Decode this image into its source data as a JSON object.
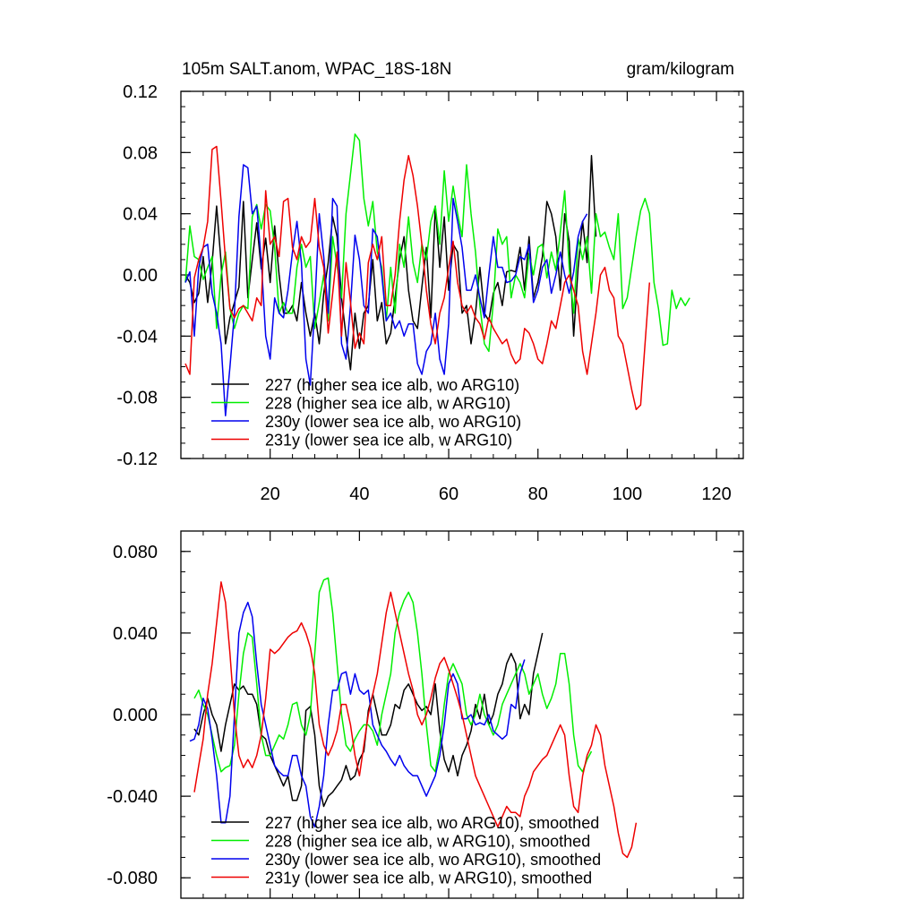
{
  "chart_data": [
    {
      "type": "line",
      "title": "105m SALT.anom, WPAC_18S-18N",
      "units": "gram/kilogram",
      "xlabel": "",
      "ylabel": "",
      "xlim": [
        0,
        126
      ],
      "ylim": [
        -0.12,
        0.12
      ],
      "x_ticks": [
        20,
        40,
        60,
        80,
        100,
        120
      ],
      "x_tick_labels": [
        "20",
        "40",
        "60",
        "80",
        "100",
        "120"
      ],
      "y_ticks": [
        -0.12,
        -0.08,
        -0.04,
        0.0,
        0.04,
        0.08,
        0.12
      ],
      "y_tick_labels": [
        "-0.12",
        "-0.08",
        "-0.04",
        "0.00",
        "0.04",
        "0.08",
        "0.12"
      ],
      "legend_position": "lower-left",
      "series": [
        {
          "name": "227 (higher sea ice alb, wo ARG10)",
          "color": "#000000",
          "x_start": 1,
          "values": [
            0.0,
            -0.005,
            -0.018,
            -0.012,
            0.012,
            -0.018,
            0.008,
            0.045,
            0.008,
            -0.045,
            -0.028,
            -0.018,
            -0.008,
            0.048,
            -0.015,
            0.01,
            0.034,
            0.004,
            0.024,
            -0.005,
            0.032,
            0.0,
            -0.025,
            -0.025,
            -0.02,
            -0.03,
            -0.005,
            -0.025,
            -0.04,
            -0.025,
            -0.045,
            -0.012,
            0.008,
            0.038,
            0.025,
            -0.015,
            -0.04,
            -0.062,
            -0.025,
            -0.048,
            -0.025,
            -0.02,
            0.01,
            -0.03,
            -0.018,
            -0.045,
            -0.038,
            -0.015,
            0.01,
            0.025,
            -0.01,
            -0.03,
            -0.035,
            -0.008,
            0.018,
            -0.028,
            0.045,
            0.005,
            0.038,
            -0.01,
            0.02,
            0.015,
            -0.025,
            -0.02,
            -0.045,
            -0.025,
            0.005,
            -0.025,
            -0.03,
            -0.012,
            -0.005,
            -0.02,
            0.002,
            0.003,
            0.002,
            0.018,
            -0.01,
            0.025,
            -0.015,
            -0.005,
            0.012,
            0.048,
            0.04,
            0.025,
            -0.01,
            0.04,
            0.022,
            -0.04,
            0.005,
            0.035,
            0.008,
            0.078,
            0.025
          ]
        },
        {
          "name": "228 (higher sea ice alb, w ARG10)",
          "color": "#00ee00",
          "x_start": 1,
          "values": [
            -0.005,
            0.032,
            0.012,
            0.01,
            -0.003,
            0.005,
            0.012,
            -0.035,
            0.0,
            0.015,
            -0.022,
            -0.035,
            -0.025,
            -0.02,
            -0.022,
            0.038,
            0.046,
            0.03,
            0.046,
            0.042,
            0.018,
            -0.025,
            -0.018,
            -0.025,
            -0.025,
            0.005,
            0.02,
            0.005,
            0.012,
            -0.035,
            -0.018,
            0.0,
            -0.03,
            0.025,
            0.006,
            -0.015,
            0.04,
            0.066,
            0.092,
            0.088,
            0.05,
            0.032,
            0.048,
            0.015,
            0.005,
            -0.03,
            0.005,
            -0.025,
            0.02,
            0.005,
            0.038,
            0.008,
            -0.005,
            0.02,
            0.01,
            0.035,
            0.045,
            0.02,
            0.068,
            0.035,
            0.058,
            0.04,
            0.025,
            0.072,
            0.04,
            0.015,
            -0.02,
            -0.045,
            -0.05,
            -0.018,
            0.03,
            0.02,
            0.025,
            -0.015,
            0.0,
            -0.005,
            -0.015,
            0.014,
            0.0,
            0.018,
            0.02,
            -0.002,
            0.015,
            0.003,
            0.028,
            0.055,
            0.005,
            -0.025,
            0.024,
            0.01,
            0.025,
            -0.012,
            0.04,
            0.025,
            0.028,
            0.018,
            0.01,
            0.04,
            -0.022,
            -0.015,
            0.005,
            0.025,
            0.042,
            0.05,
            0.04,
            -0.005,
            -0.022,
            -0.046,
            -0.045,
            -0.01,
            -0.022,
            -0.015,
            -0.02,
            -0.015
          ]
        },
        {
          "name": "230y (lower sea ice alb, wo ARG10)",
          "color": "#0000ee",
          "x_start": 1,
          "values": [
            -0.005,
            0.002,
            -0.04,
            0.005,
            0.018,
            0.02,
            -0.012,
            -0.025,
            -0.045,
            -0.092,
            -0.06,
            -0.025,
            0.038,
            0.072,
            0.07,
            0.04,
            0.045,
            0.01,
            -0.04,
            -0.055,
            -0.015,
            -0.025,
            -0.028,
            -0.01,
            0.015,
            0.035,
            0.008,
            -0.055,
            -0.072,
            -0.02,
            0.04,
            0.012,
            -0.025,
            0.05,
            0.045,
            -0.045,
            -0.055,
            -0.02,
            0.026,
            0.01,
            -0.02,
            -0.025,
            0.03,
            0.025,
            0.0,
            -0.03,
            -0.025,
            -0.035,
            -0.03,
            -0.04,
            -0.032,
            -0.032,
            -0.058,
            -0.065,
            -0.05,
            -0.045,
            -0.025,
            -0.055,
            -0.065,
            -0.032,
            0.05,
            0.035,
            0.018,
            -0.01,
            -0.01,
            0.0,
            -0.015,
            -0.028,
            0.0,
            0.025,
            0.005,
            0.005,
            -0.005,
            -0.004,
            0.0,
            0.012,
            0.01,
            0.02,
            -0.018,
            -0.01,
            0.005,
            0.01,
            -0.012,
            0.0,
            0.015,
            0.0,
            -0.012,
            0.002,
            0.025,
            0.035,
            0.04
          ]
        },
        {
          "name": "231y (lower sea ice alb, w ARG10)",
          "color": "#ee0000",
          "x_start": 1,
          "values": [
            -0.058,
            -0.065,
            -0.002,
            0.01,
            0.018,
            0.035,
            0.082,
            0.084,
            0.048,
            0.01,
            -0.022,
            -0.028,
            -0.022,
            -0.02,
            -0.025,
            -0.03,
            -0.015,
            -0.02,
            0.055,
            0.02,
            0.025,
            0.012,
            0.048,
            0.05,
            0.018,
            0.01,
            0.025,
            0.018,
            0.022,
            0.05,
            0.018,
            0.005,
            -0.038,
            -0.012,
            0.015,
            -0.04,
            0.008,
            -0.018,
            -0.048,
            -0.038,
            -0.045,
            0.008,
            0.02,
            0.01,
            0.025,
            -0.02,
            -0.02,
            0.0,
            0.035,
            0.062,
            0.078,
            0.065,
            0.045,
            0.02,
            -0.01,
            -0.032,
            -0.045,
            -0.025,
            -0.015,
            0.005,
            0.022,
            -0.005,
            -0.02,
            -0.025,
            -0.02,
            -0.028,
            -0.032,
            -0.042,
            -0.028,
            -0.035,
            -0.04,
            -0.045,
            -0.042,
            -0.052,
            -0.058,
            -0.055,
            -0.035,
            -0.038,
            -0.045,
            -0.055,
            -0.058,
            -0.045,
            -0.03,
            -0.035,
            -0.02,
            -0.005,
            0.0,
            -0.01,
            -0.02,
            -0.05,
            -0.065,
            -0.045,
            -0.025,
            0.0,
            0.005,
            -0.01,
            -0.015,
            -0.04,
            -0.045,
            -0.06,
            -0.075,
            -0.088,
            -0.085,
            -0.045,
            -0.005
          ]
        }
      ]
    },
    {
      "type": "line",
      "title": "",
      "xlabel": "",
      "ylabel": "",
      "xlim": [
        0,
        126
      ],
      "ylim": [
        -0.09,
        0.09
      ],
      "x_ticks": [
        20,
        40,
        60,
        80,
        100,
        120
      ],
      "y_ticks": [
        -0.08,
        -0.04,
        0.0,
        0.04,
        0.08
      ],
      "y_tick_labels": [
        "-0.080",
        "-0.040",
        "0.000",
        "0.040",
        "0.080"
      ],
      "legend_position": "lower-left",
      "series": [
        {
          "name": "227 (higher sea ice alb, wo ARG10), smoothed",
          "color": "#000000",
          "x_start": 3,
          "values": [
            -0.007,
            -0.01,
            0.0,
            0.008,
            0.0,
            -0.005,
            -0.018,
            -0.005,
            0.005,
            0.015,
            0.012,
            0.014,
            0.01,
            0.01,
            0.005,
            -0.01,
            -0.012,
            -0.02,
            -0.025,
            -0.03,
            -0.035,
            -0.03,
            -0.042,
            -0.042,
            -0.035,
            0.002,
            0.004,
            -0.01,
            -0.035,
            -0.045,
            -0.04,
            -0.038,
            -0.035,
            -0.032,
            -0.025,
            -0.032,
            -0.03,
            -0.022,
            -0.018,
            0.002,
            0.01,
            0.0,
            -0.01,
            -0.01,
            -0.005,
            0.005,
            0.003,
            0.012,
            0.015,
            0.01,
            0.005,
            0.002,
            0.004,
            0.0,
            0.015,
            -0.008,
            -0.022,
            -0.028,
            -0.02,
            -0.03,
            -0.02,
            -0.015,
            -0.008,
            0.005,
            -0.002,
            0.01,
            -0.005,
            0.0,
            0.01,
            0.015,
            0.025,
            0.03,
            0.025,
            -0.002,
            0.005,
            0.0,
            0.02,
            0.03,
            0.04
          ]
        },
        {
          "name": "228 (higher sea ice alb, w ARG10), smoothed",
          "color": "#00ee00",
          "x_start": 3,
          "values": [
            0.008,
            0.012,
            0.005,
            0.0,
            -0.01,
            -0.02,
            -0.028,
            -0.026,
            -0.025,
            -0.015,
            0.01,
            0.03,
            0.04,
            0.038,
            0.015,
            -0.01,
            -0.02,
            -0.02,
            -0.015,
            -0.01,
            -0.012,
            -0.005,
            0.005,
            0.006,
            -0.005,
            -0.01,
            0.0,
            0.03,
            0.06,
            0.066,
            0.067,
            0.05,
            0.025,
            0.0,
            -0.015,
            -0.018,
            -0.012,
            -0.008,
            -0.005,
            -0.005,
            -0.008,
            -0.015,
            0.0,
            0.01,
            0.02,
            0.04,
            0.05,
            0.056,
            0.06,
            0.055,
            0.04,
            0.02,
            -0.005,
            -0.025,
            -0.028,
            -0.015,
            0.005,
            0.02,
            0.025,
            0.02,
            0.015,
            0.0,
            -0.005,
            0.0,
            0.01,
            0.0,
            -0.005,
            -0.01,
            -0.005,
            0.005,
            0.01,
            0.015,
            0.02,
            0.025,
            0.02,
            0.01,
            0.015,
            0.02,
            0.01,
            0.003,
            0.008,
            0.015,
            0.03,
            0.03,
            0.015,
            -0.01,
            -0.025,
            -0.028,
            -0.022,
            -0.018
          ]
        },
        {
          "name": "230y (lower sea ice alb, wo ARG10), smoothed",
          "color": "#0000ee",
          "x_start": 2,
          "values": [
            -0.013,
            -0.012,
            -0.005,
            0.008,
            0.003,
            -0.012,
            -0.03,
            -0.053,
            -0.053,
            -0.04,
            0.0,
            0.04,
            0.05,
            0.055,
            0.048,
            0.025,
            0.005,
            -0.005,
            -0.015,
            -0.025,
            -0.028,
            -0.03,
            -0.03,
            -0.02,
            -0.02,
            -0.03,
            -0.035,
            -0.05,
            -0.055,
            -0.045,
            -0.03,
            -0.005,
            0.012,
            0.012,
            0.02,
            0.021,
            0.01,
            0.02,
            0.012,
            0.01,
            0.012,
            -0.005,
            -0.01,
            -0.015,
            -0.018,
            -0.022,
            -0.025,
            -0.02,
            -0.025,
            -0.028,
            -0.03,
            -0.03,
            -0.035,
            -0.04,
            -0.035,
            -0.03,
            -0.02,
            -0.005,
            0.015,
            0.02,
            0.015,
            -0.002,
            -0.002,
            0.0,
            -0.005,
            -0.004,
            -0.005,
            0.0,
            -0.008,
            -0.01,
            -0.012,
            -0.01,
            0.005,
            0.003,
            0.02,
            0.027
          ]
        },
        {
          "name": "231y (lower sea ice alb, w ARG10), smoothed",
          "color": "#ee0000",
          "x_start": 3,
          "values": [
            -0.038,
            -0.025,
            -0.012,
            0.01,
            0.025,
            0.045,
            0.065,
            0.055,
            0.03,
            0.0,
            -0.02,
            -0.026,
            -0.022,
            -0.026,
            -0.02,
            -0.01,
            0.008,
            0.032,
            0.03,
            0.032,
            0.035,
            0.038,
            0.04,
            0.041,
            0.045,
            0.04,
            0.033,
            0.02,
            -0.005,
            -0.015,
            -0.02,
            -0.015,
            -0.008,
            0.005,
            0.005,
            -0.005,
            -0.02,
            -0.03,
            -0.015,
            0.0,
            0.01,
            0.02,
            0.035,
            0.05,
            0.06,
            0.05,
            0.04,
            0.03,
            0.02,
            0.012,
            0.0,
            -0.005,
            0.0,
            0.008,
            0.018,
            0.025,
            0.028,
            0.022,
            0.015,
            0.008,
            0.0,
            -0.01,
            -0.02,
            -0.03,
            -0.035,
            -0.04,
            -0.045,
            -0.05,
            -0.055,
            -0.05,
            -0.045,
            -0.048,
            -0.048,
            -0.05,
            -0.04,
            -0.035,
            -0.028,
            -0.025,
            -0.022,
            -0.02,
            -0.015,
            -0.01,
            -0.005,
            -0.01,
            -0.03,
            -0.045,
            -0.048,
            -0.03,
            -0.02,
            -0.015,
            -0.005,
            -0.01,
            -0.025,
            -0.035,
            -0.045,
            -0.058,
            -0.068,
            -0.07,
            -0.065,
            -0.053
          ]
        }
      ]
    }
  ]
}
